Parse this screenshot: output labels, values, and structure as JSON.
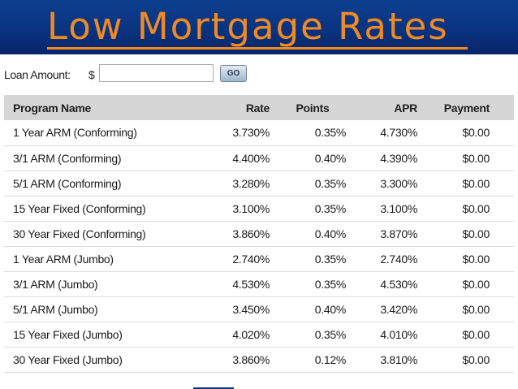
{
  "banner": {
    "title": "Low Mortgage Rates"
  },
  "loan_form": {
    "label": "Loan Amount:",
    "currency_symbol": "$",
    "amount_value": "",
    "go_label": "GO"
  },
  "rates_table": {
    "columns": [
      "Program Name",
      "Rate",
      "Points",
      "APR",
      "Payment"
    ],
    "rows": [
      [
        "1 Year ARM (Conforming)",
        "3.730%",
        "0.35%",
        "4.730%",
        "$0.00"
      ],
      [
        "3/1 ARM (Conforming)",
        "4.400%",
        "0.40%",
        "4.390%",
        "$0.00"
      ],
      [
        "5/1 ARM (Conforming)",
        "3.280%",
        "0.35%",
        "3.300%",
        "$0.00"
      ],
      [
        "15 Year Fixed (Conforming)",
        "3.100%",
        "0.35%",
        "3.100%",
        "$0.00"
      ],
      [
        "30 Year Fixed (Conforming)",
        "3.860%",
        "0.40%",
        "3.870%",
        "$0.00"
      ],
      [
        "1 Year ARM (Jumbo)",
        "2.740%",
        "0.35%",
        "2.740%",
        "$0.00"
      ],
      [
        "3/1 ARM (Jumbo)",
        "4.530%",
        "0.35%",
        "4.530%",
        "$0.00"
      ],
      [
        "5/1 ARM (Jumbo)",
        "3.450%",
        "0.40%",
        "3.420%",
        "$0.00"
      ],
      [
        "15 Year Fixed (Jumbo)",
        "4.020%",
        "0.35%",
        "4.010%",
        "$0.00"
      ],
      [
        "30 Year Fixed (Jumbo)",
        "3.860%",
        "0.12%",
        "3.810%",
        "$0.00"
      ]
    ]
  },
  "colors": {
    "banner_bg": "#0a3380",
    "title_text": "#f08a24",
    "table_header_bg": "#d6d6d6"
  }
}
